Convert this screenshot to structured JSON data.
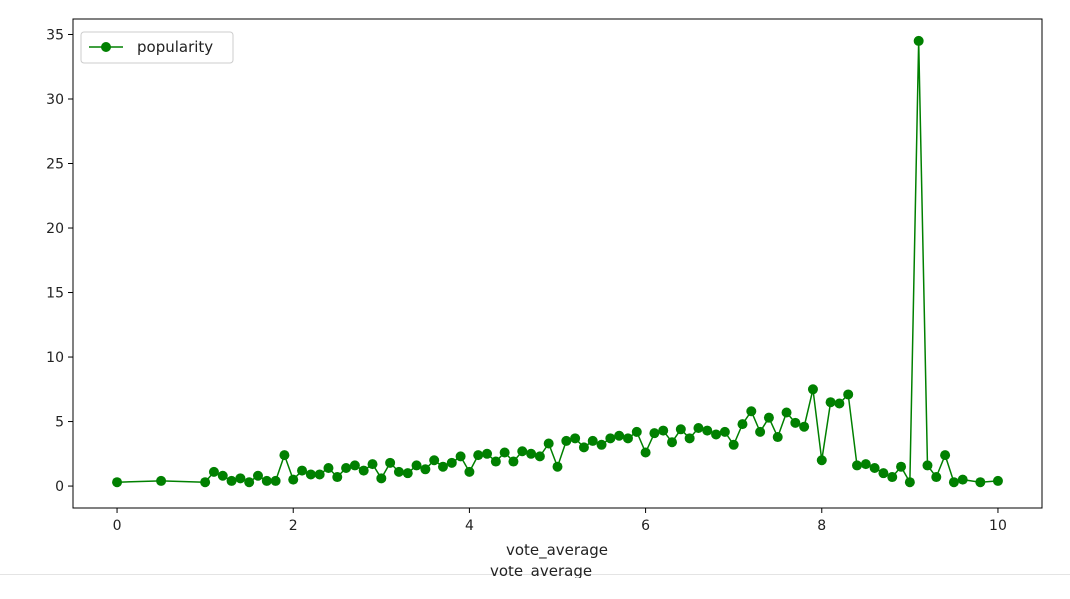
{
  "chart_data": {
    "type": "line",
    "title": "",
    "xlabel": "vote_average",
    "ylabel": "",
    "xlim": [
      -0.5,
      10.5
    ],
    "ylim": [
      -1.7,
      36.2
    ],
    "xticks": [
      0,
      2,
      4,
      6,
      8,
      10
    ],
    "xtick_labels": [
      "0",
      "2",
      "4",
      "6",
      "8",
      "10"
    ],
    "yticks": [
      0,
      5,
      10,
      15,
      20,
      25,
      30,
      35
    ],
    "ytick_labels": [
      "0",
      "5",
      "10",
      "15",
      "20",
      "25",
      "30",
      "35"
    ],
    "grid": false,
    "legend": "top-left",
    "series": [
      {
        "name": "popularity",
        "color": "#008000",
        "marker": "circle",
        "x": [
          0.0,
          0.5,
          1.0,
          1.1,
          1.2,
          1.3,
          1.4,
          1.5,
          1.6,
          1.7,
          1.8,
          1.9,
          2.0,
          2.1,
          2.2,
          2.3,
          2.4,
          2.5,
          2.6,
          2.7,
          2.8,
          2.9,
          3.0,
          3.1,
          3.2,
          3.3,
          3.4,
          3.5,
          3.6,
          3.7,
          3.8,
          3.9,
          4.0,
          4.1,
          4.2,
          4.3,
          4.4,
          4.5,
          4.6,
          4.7,
          4.8,
          4.9,
          5.0,
          5.1,
          5.2,
          5.3,
          5.4,
          5.5,
          5.6,
          5.7,
          5.8,
          5.9,
          6.0,
          6.1,
          6.2,
          6.3,
          6.4,
          6.5,
          6.6,
          6.7,
          6.8,
          6.9,
          7.0,
          7.1,
          7.2,
          7.3,
          7.4,
          7.5,
          7.6,
          7.7,
          7.8,
          7.9,
          8.0,
          8.1,
          8.2,
          8.3,
          8.4,
          8.5,
          8.6,
          8.7,
          8.8,
          8.9,
          9.0,
          9.1,
          9.2,
          9.3,
          9.4,
          9.5,
          9.6,
          9.8,
          10.0
        ],
        "y": [
          0.3,
          0.4,
          0.3,
          1.1,
          0.8,
          0.4,
          0.6,
          0.3,
          0.8,
          0.4,
          0.4,
          2.4,
          0.5,
          1.2,
          0.9,
          0.9,
          1.4,
          0.7,
          1.4,
          1.6,
          1.2,
          1.7,
          0.6,
          1.8,
          1.1,
          1.0,
          1.6,
          1.3,
          2.0,
          1.5,
          1.8,
          2.3,
          1.1,
          2.4,
          2.5,
          1.9,
          2.6,
          1.9,
          2.7,
          2.5,
          2.3,
          3.3,
          1.5,
          3.5,
          3.7,
          3.0,
          3.5,
          3.2,
          3.7,
          3.9,
          3.7,
          4.2,
          2.6,
          4.1,
          4.3,
          3.4,
          4.4,
          3.7,
          4.5,
          4.3,
          4.0,
          4.2,
          3.2,
          4.8,
          5.8,
          4.2,
          5.3,
          3.8,
          5.7,
          4.9,
          4.6,
          7.5,
          2.0,
          6.5,
          6.4,
          7.1,
          1.6,
          1.7,
          1.4,
          1.0,
          0.7,
          1.5,
          0.3,
          34.5,
          1.6,
          0.7,
          2.4,
          0.3,
          0.5,
          0.3,
          0.4
        ]
      }
    ]
  },
  "below_fold": {
    "cut_off_label": "vote_average"
  }
}
